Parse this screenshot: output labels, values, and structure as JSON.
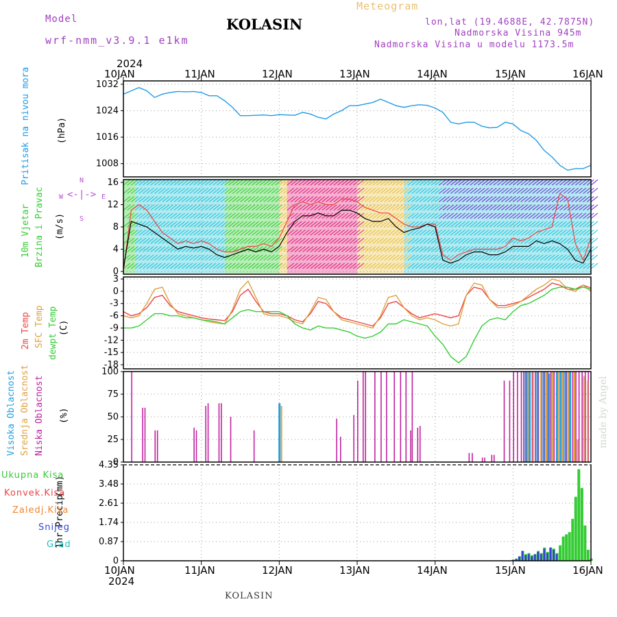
{
  "header": {
    "model_label": "Model",
    "model_value": "wrf-nmm_v3.9.1 e1km",
    "station": "KOLASIN",
    "meteogram_label": "Meteogram",
    "lonlat": "lon,lat (19.4688E, 42.7875N)",
    "altitude": "Nadmorska Visina 945m",
    "altitude_model": "Nadmorska Visina u modelu 1173.5m"
  },
  "footer": {
    "station": "KOLASIN",
    "credit": "made by Angel"
  },
  "axis_dates": {
    "year": "2024",
    "labels": [
      "10JAN",
      "11JAN",
      "12JAN",
      "13JAN",
      "14JAN",
      "15JAN",
      "16JAN"
    ]
  },
  "panel_labels": {
    "pressure": [
      "Pritisak na nivou mora",
      "(hPa)"
    ],
    "wind": [
      "10m Vjetar",
      "Brzina i Pravac",
      "(m/s)"
    ],
    "temp": [
      "2m Temp",
      "SFC Temp",
      "dewpt Temp",
      "(C)"
    ],
    "cloud": [
      "Visoka Oblacnost",
      "Srednja Oblacnost",
      "Niska Oblacnost",
      "(%)"
    ],
    "precip_axis": [
      "1hr Precip",
      "(mm)"
    ],
    "precip_legend": [
      "Ukupna Kisa",
      "Konvek.Kisa",
      "Zaledj.Kisa",
      "Snijeg",
      "Grad"
    ]
  },
  "compass": {
    "n": "N",
    "s": "S",
    "e": "E",
    "w": "W"
  },
  "colors": {
    "pressure": "#1e9be8",
    "temp2m": "#ee4444",
    "sfc": "#dda040",
    "dew": "#33cc33",
    "cloud_high": "#22a0e0",
    "cloud_mid": "#e0a040",
    "cloud_low": "#c020a0",
    "precip_total": "#33cc33",
    "precip_snow": "#3344cc",
    "precip_grad": "#22bbbb"
  },
  "chart_data": [
    {
      "type": "line",
      "name": "pressure",
      "ylabel": "(hPa)",
      "ylim": [
        1004,
        1033
      ],
      "yticks": [
        1008,
        1016,
        1024,
        1032
      ],
      "x_days": [
        0,
        0.1,
        0.2,
        0.3,
        0.4,
        0.5,
        0.6,
        0.7,
        0.8,
        0.9,
        1.0,
        1.1,
        1.2,
        1.3,
        1.4,
        1.5,
        1.6,
        1.7,
        1.8,
        1.9,
        2.0,
        2.1,
        2.2,
        2.3,
        2.4,
        2.5,
        2.6,
        2.7,
        2.8,
        2.9,
        3.0,
        3.1,
        3.2,
        3.3,
        3.4,
        3.5,
        3.6,
        3.7,
        3.8,
        3.9,
        4.0,
        4.1,
        4.2,
        4.3,
        4.4,
        4.5,
        4.6,
        4.7,
        4.8,
        4.9,
        5.0,
        5.1,
        5.2,
        5.3,
        5.4,
        5.5,
        5.6,
        5.7,
        5.8,
        5.9,
        6.0
      ],
      "values": [
        1029,
        1030,
        1031,
        1030,
        1028,
        1029,
        1029.5,
        1029.8,
        1029.7,
        1029.8,
        1029.5,
        1028.5,
        1028.5,
        1027,
        1025,
        1022.5,
        1022.5,
        1022.6,
        1022.7,
        1022.5,
        1022.8,
        1022.7,
        1022.6,
        1023.5,
        1023,
        1022,
        1021.5,
        1023,
        1024,
        1025.5,
        1025.5,
        1026,
        1026.5,
        1027.5,
        1026.5,
        1025.5,
        1025,
        1025.5,
        1025.8,
        1025.6,
        1024.8,
        1023.5,
        1020.5,
        1020,
        1020.5,
        1020.5,
        1019.3,
        1018.8,
        1019,
        1020.5,
        1020,
        1018,
        1017,
        1015,
        1012,
        1010,
        1007.5,
        1006,
        1006.5,
        1006.5,
        1007.5
      ]
    },
    {
      "type": "line",
      "name": "wind_speed",
      "ylabel": "(m/s)",
      "ylim": [
        -0.5,
        16.5
      ],
      "yticks": [
        0,
        4,
        8,
        12,
        16
      ],
      "x_days": [
        0,
        0.1,
        0.2,
        0.3,
        0.4,
        0.5,
        0.6,
        0.7,
        0.8,
        0.9,
        1.0,
        1.1,
        1.2,
        1.3,
        1.4,
        1.5,
        1.6,
        1.7,
        1.8,
        1.9,
        2.0,
        2.1,
        2.2,
        2.3,
        2.4,
        2.5,
        2.6,
        2.7,
        2.8,
        2.9,
        3.0,
        3.1,
        3.2,
        3.3,
        3.4,
        3.5,
        3.6,
        3.7,
        3.8,
        3.9,
        4.0,
        4.1,
        4.2,
        4.3,
        4.4,
        4.5,
        4.6,
        4.7,
        4.8,
        4.9,
        5.0,
        5.1,
        5.2,
        5.3,
        5.4,
        5.5,
        5.6,
        5.7,
        5.8,
        5.9,
        6.0
      ],
      "values": [
        0.5,
        9,
        8.5,
        8,
        7,
        6,
        5,
        4,
        4.5,
        4.2,
        4.5,
        4,
        3,
        2.5,
        3,
        3.5,
        4,
        3.5,
        4,
        3.5,
        4.5,
        7,
        9,
        10,
        10,
        10.5,
        10,
        10,
        11,
        11,
        10.5,
        9.5,
        9,
        9,
        9.5,
        8,
        7,
        7.5,
        7.8,
        8.5,
        8,
        2,
        1.5,
        2,
        3,
        3.5,
        3.5,
        3,
        3,
        3.5,
        4.5,
        4.5,
        4.5,
        5.5,
        5,
        5.5,
        5,
        4,
        2,
        1.5,
        4
      ],
      "gust_values": [
        0,
        11,
        12,
        11,
        9,
        7,
        6,
        5,
        5.5,
        5,
        5.5,
        5,
        4,
        3.5,
        3.5,
        4,
        4.5,
        4.5,
        5,
        4.5,
        6,
        9,
        12,
        12.5,
        12,
        12.5,
        12,
        12,
        13,
        13,
        12.5,
        11.5,
        11,
        10.5,
        10.5,
        9.5,
        8.5,
        8,
        8,
        8.5,
        8.5,
        3,
        2,
        3,
        3.5,
        4,
        4,
        4,
        4,
        4.5,
        6,
        5.5,
        6,
        7,
        7.5,
        8,
        14,
        13,
        5,
        2,
        6
      ]
    },
    {
      "type": "line",
      "name": "temperature",
      "ylabel": "(C)",
      "ylim": [
        -19,
        3.5
      ],
      "yticks": [
        -18,
        -15,
        -12,
        -9,
        -6,
        -3,
        0,
        3
      ],
      "x_days": [
        0,
        0.1,
        0.2,
        0.3,
        0.4,
        0.5,
        0.6,
        0.7,
        0.8,
        0.9,
        1.0,
        1.1,
        1.2,
        1.3,
        1.4,
        1.5,
        1.6,
        1.7,
        1.8,
        1.9,
        2.0,
        2.1,
        2.2,
        2.3,
        2.4,
        2.5,
        2.6,
        2.7,
        2.8,
        2.9,
        3.0,
        3.1,
        3.2,
        3.3,
        3.4,
        3.5,
        3.6,
        3.7,
        3.8,
        3.9,
        4.0,
        4.1,
        4.2,
        4.3,
        4.4,
        4.5,
        4.6,
        4.7,
        4.8,
        4.9,
        5.0,
        5.1,
        5.2,
        5.3,
        5.4,
        5.5,
        5.6,
        5.7,
        5.8,
        5.9,
        6.0
      ],
      "series": [
        {
          "key": "t2m",
          "values": [
            -5,
            -6,
            -5.5,
            -4,
            -1.5,
            -1,
            -3.5,
            -5,
            -5.5,
            -6,
            -6.5,
            -6.8,
            -7,
            -7.2,
            -5,
            -1,
            0.5,
            -2.5,
            -5,
            -5.5,
            -5.5,
            -6,
            -7,
            -7.5,
            -5.5,
            -2.5,
            -3,
            -5,
            -6.5,
            -7,
            -7.5,
            -8,
            -8.5,
            -6.5,
            -3,
            -2.5,
            -4,
            -5.5,
            -6.5,
            -6,
            -5.5,
            -6,
            -6.5,
            -6,
            -1,
            1,
            0.5,
            -2,
            -3.5,
            -3.5,
            -3,
            -2.5,
            -1.5,
            -0.5,
            0.5,
            2,
            1.5,
            0.5,
            0.5,
            1.5,
            0.8
          ]
        },
        {
          "key": "sfc",
          "values": [
            -6,
            -6.5,
            -6,
            -3,
            0.5,
            1,
            -3,
            -5.5,
            -6,
            -6.5,
            -7,
            -7.5,
            -7.8,
            -8,
            -4.5,
            0.5,
            2.5,
            -1.5,
            -5.5,
            -6,
            -6,
            -6.5,
            -7.5,
            -8,
            -5,
            -1.5,
            -2,
            -5,
            -7,
            -7.5,
            -8,
            -8.5,
            -9,
            -6,
            -1.5,
            -1,
            -4,
            -6,
            -7,
            -6.5,
            -7,
            -8,
            -8.5,
            -8,
            -1,
            2,
            1.5,
            -2,
            -4,
            -4,
            -3.5,
            -2.5,
            -1,
            0.5,
            1.5,
            3,
            2.5,
            0.5,
            0,
            1.5,
            0
          ]
        },
        {
          "key": "dew",
          "values": [
            -9,
            -9,
            -8.5,
            -7,
            -5.5,
            -5.5,
            -6,
            -6,
            -6.5,
            -6.5,
            -7,
            -7.2,
            -7.5,
            -8,
            -6.5,
            -5,
            -4.5,
            -5,
            -5,
            -5,
            -5,
            -6,
            -8,
            -9,
            -9.5,
            -8.5,
            -9,
            -9,
            -9.5,
            -10,
            -11,
            -11.5,
            -11,
            -10,
            -8,
            -8,
            -7,
            -7.5,
            -8,
            -8.5,
            -11,
            -13,
            -16,
            -17.5,
            -16,
            -12,
            -8.5,
            -7,
            -6.5,
            -7,
            -5,
            -3.5,
            -3,
            -2,
            -1,
            0.5,
            1,
            1,
            0.5,
            1,
            0.5
          ]
        }
      ]
    },
    {
      "type": "bar",
      "name": "cloud_cover",
      "ylabel": "(%)",
      "ylim": [
        0,
        100
      ],
      "yticks": [
        0,
        25,
        50,
        75,
        100
      ],
      "low_x": [
        0.1,
        0.24,
        0.27,
        0.4,
        0.43,
        0.9,
        0.93,
        1.05,
        1.08,
        1.22,
        1.25,
        1.37,
        1.67,
        2.73,
        2.78,
        2.95,
        3.0,
        3.07,
        3.1,
        3.22,
        3.3,
        3.37,
        3.47,
        3.55,
        3.62,
        3.68,
        3.7,
        3.77,
        3.8,
        4.43,
        4.47,
        4.6,
        4.63,
        4.72,
        4.75,
        4.88,
        4.95,
        5.0,
        5.05,
        5.1,
        5.13,
        5.17,
        5.2,
        5.24,
        5.28,
        5.32,
        5.36,
        5.4,
        5.44,
        5.48,
        5.52,
        5.56,
        5.6,
        5.64,
        5.68,
        5.72,
        5.76,
        5.8,
        5.84,
        5.88,
        5.92,
        5.96
      ],
      "low_values": [
        100,
        60,
        60,
        35,
        35,
        38,
        35,
        62,
        65,
        65,
        65,
        50,
        35,
        48,
        28,
        52,
        90,
        100,
        100,
        100,
        100,
        100,
        100,
        100,
        100,
        35,
        100,
        38,
        40,
        10,
        10,
        5,
        5,
        8,
        8,
        90,
        90,
        100,
        100,
        100,
        100,
        100,
        100,
        100,
        100,
        100,
        100,
        100,
        100,
        100,
        100,
        100,
        100,
        100,
        100,
        100,
        100,
        100,
        100,
        100,
        100,
        100
      ],
      "high_x": [
        1.99,
        5.15,
        5.2,
        5.3,
        5.38,
        5.45,
        5.55,
        5.6,
        5.66,
        5.72
      ],
      "high_values": [
        65,
        100,
        100,
        100,
        100,
        98,
        100,
        100,
        100,
        100
      ],
      "mid_x": [
        2.02,
        5.18,
        5.25,
        5.35,
        5.42,
        5.5,
        5.58,
        5.63,
        5.7,
        5.78,
        5.82,
        5.9,
        5.95
      ],
      "mid_values": [
        62,
        100,
        100,
        100,
        100,
        100,
        100,
        100,
        100,
        100,
        25,
        95,
        90
      ]
    },
    {
      "type": "bar",
      "name": "precipitation",
      "ylabel": "(mm)",
      "ylim": [
        0,
        4.35
      ],
      "yticks": [
        0,
        0.87,
        1.74,
        2.61,
        3.48,
        4.35
      ],
      "x_days": [
        5.0,
        5.04,
        5.08,
        5.12,
        5.16,
        5.2,
        5.24,
        5.28,
        5.32,
        5.36,
        5.4,
        5.44,
        5.48,
        5.52,
        5.56,
        5.6,
        5.64,
        5.68,
        5.72,
        5.76,
        5.8,
        5.84,
        5.88,
        5.92,
        5.96,
        6.0
      ],
      "total": [
        0.05,
        0.1,
        0.2,
        0.45,
        0.3,
        0.35,
        0.25,
        0.3,
        0.45,
        0.35,
        0.6,
        0.4,
        0.6,
        0.55,
        0.35,
        0.7,
        1.1,
        1.2,
        1.3,
        1.9,
        2.9,
        4.15,
        3.3,
        1.6,
        0.5,
        0.1
      ],
      "snow": [
        0.05,
        0.08,
        0.2,
        0.45,
        0.25,
        0.3,
        0.2,
        0.3,
        0.4,
        0.3,
        0.55,
        0.35,
        0.6,
        0.5,
        0.3,
        0.0,
        0.0,
        0.0,
        0.0,
        0.0,
        0.0,
        0.0,
        0.0,
        0.0,
        0.0,
        0.0
      ]
    }
  ]
}
